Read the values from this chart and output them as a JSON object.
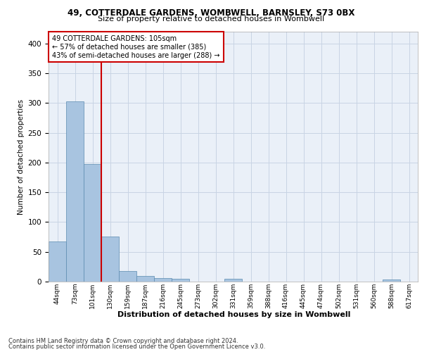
{
  "title1": "49, COTTERDALE GARDENS, WOMBWELL, BARNSLEY, S73 0BX",
  "title2": "Size of property relative to detached houses in Wombwell",
  "xlabel": "Distribution of detached houses by size in Wombwell",
  "ylabel": "Number of detached properties",
  "footnote1": "Contains HM Land Registry data © Crown copyright and database right 2024.",
  "footnote2": "Contains public sector information licensed under the Open Government Licence v3.0.",
  "annotation_line1": "49 COTTERDALE GARDENS: 105sqm",
  "annotation_line2": "← 57% of detached houses are smaller (385)",
  "annotation_line3": "43% of semi-detached houses are larger (288) →",
  "bar_color": "#a8c4e0",
  "bar_edge_color": "#5a8ab0",
  "grid_color": "#c8d4e4",
  "annotation_line_color": "#cc0000",
  "categories": [
    "44sqm",
    "73sqm",
    "101sqm",
    "130sqm",
    "159sqm",
    "187sqm",
    "216sqm",
    "245sqm",
    "273sqm",
    "302sqm",
    "331sqm",
    "359sqm",
    "388sqm",
    "416sqm",
    "445sqm",
    "474sqm",
    "502sqm",
    "531sqm",
    "560sqm",
    "588sqm",
    "617sqm"
  ],
  "values": [
    67,
    303,
    197,
    76,
    18,
    9,
    6,
    5,
    0,
    0,
    5,
    0,
    0,
    0,
    0,
    0,
    0,
    0,
    0,
    4,
    0
  ],
  "ylim": [
    0,
    420
  ],
  "yticks": [
    0,
    50,
    100,
    150,
    200,
    250,
    300,
    350,
    400
  ],
  "plot_bg_color": "#eaf0f8",
  "fig_bg_color": "#ffffff",
  "red_line_x": 2.5
}
